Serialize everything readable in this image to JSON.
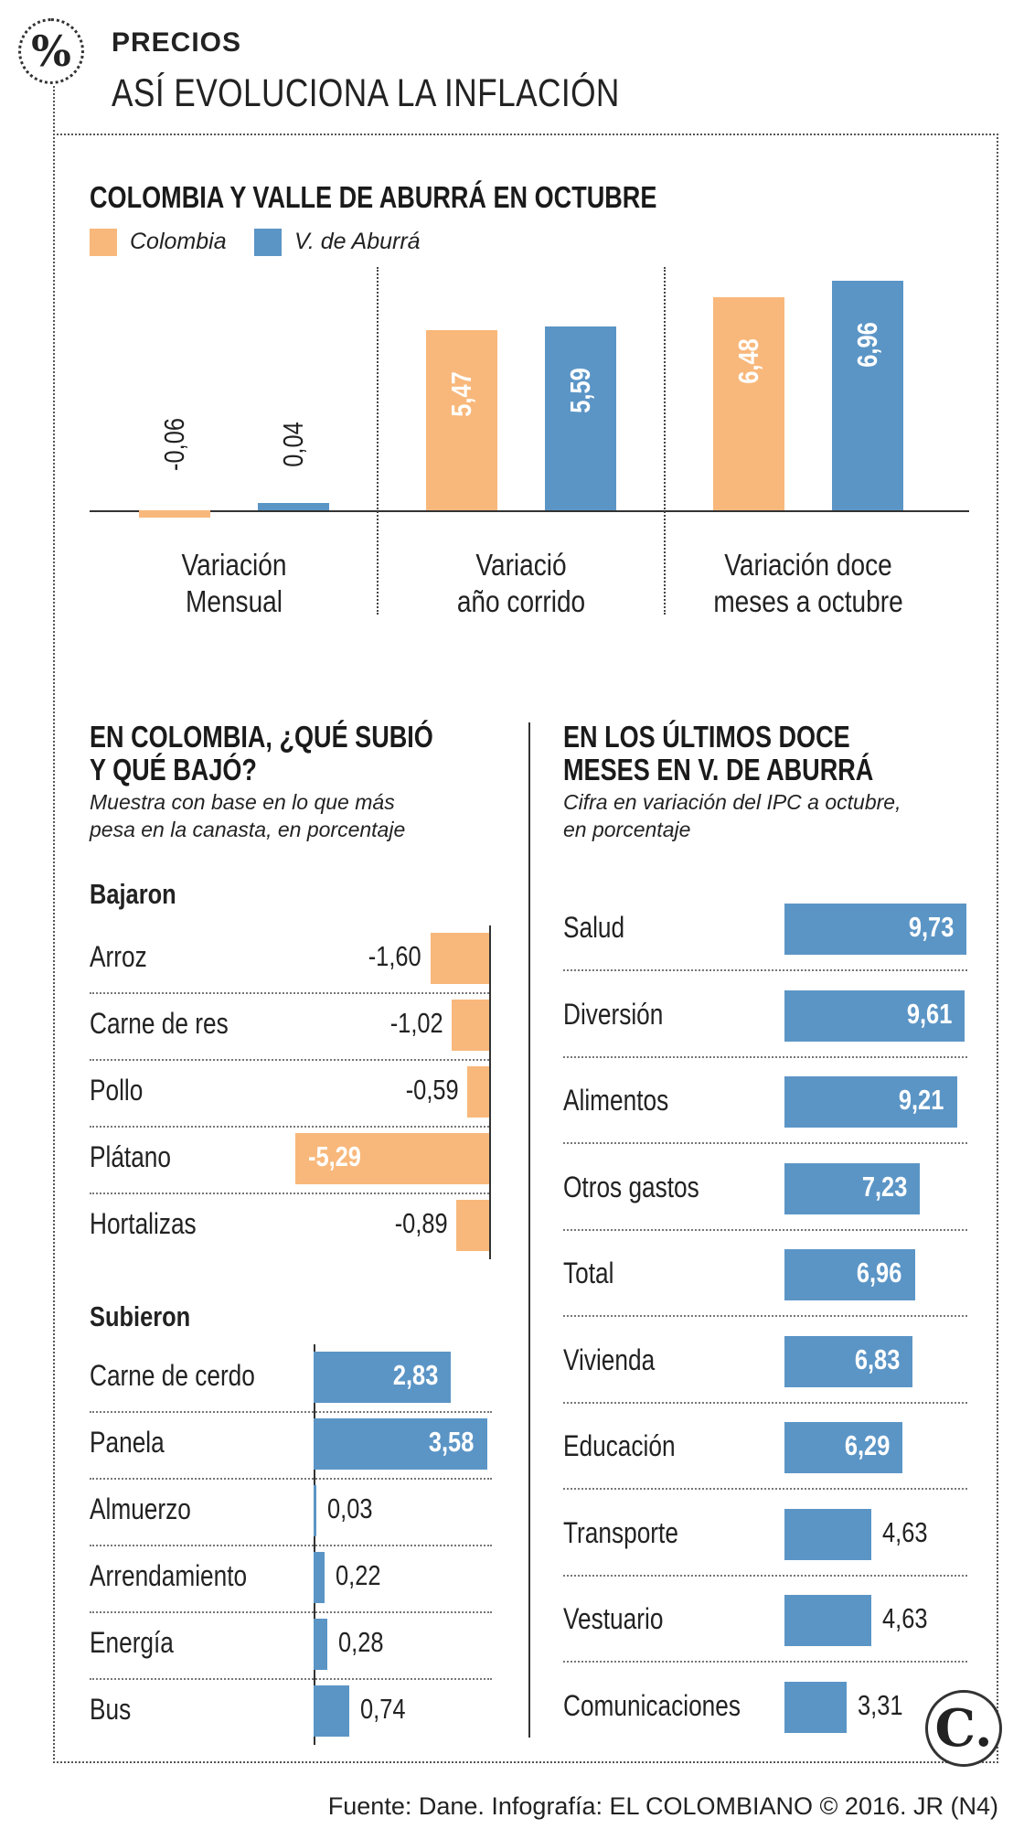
{
  "header": {
    "badge": "%",
    "kicker": "PRECIOS",
    "title": "ASÍ EVOLUCIONA LA INFLACIÓN"
  },
  "colors": {
    "colombia": "#f8b87b",
    "aburra": "#5b95c6"
  },
  "footer": "Fuente: Dane. Infografía: EL COLOMBIANO © 2016. JR (N4)",
  "logo": "C.",
  "chart_data": [
    {
      "type": "bar",
      "title": "COLOMBIA Y VALLE DE ABURRÁ EN OCTUBRE",
      "categories": [
        "Variación Mensual",
        "Variació año corrido",
        "Variación doce meses a octubre"
      ],
      "category_lines": [
        [
          "Variación",
          "Mensual"
        ],
        [
          "Variació",
          "año corrido"
        ],
        [
          "Variación doce",
          "meses a octubre"
        ]
      ],
      "series": [
        {
          "name": "Colombia",
          "values": [
            -0.06,
            5.47,
            6.48
          ],
          "labels": [
            "-0,06",
            "5,47",
            "6,48"
          ]
        },
        {
          "name": "V. de Aburrá",
          "values": [
            0.04,
            5.59,
            6.96
          ],
          "labels": [
            "0,04",
            "5,59",
            "6,96"
          ]
        }
      ],
      "ylim": [
        -0.1,
        7
      ]
    },
    {
      "type": "bar",
      "title": "EN COLOMBIA, ¿QUÉ SUBIÓ Y QUÉ BAJÓ?",
      "title_lines": [
        "EN COLOMBIA, ¿QUÉ SUBIÓ",
        "Y QUÉ BAJÓ?"
      ],
      "subtitle_lines": [
        "Muestra con base en lo que más",
        "pesa en la canasta, en porcentaje"
      ],
      "groups": [
        {
          "name": "Bajaron",
          "items": [
            {
              "label": "Arroz",
              "value": -1.6,
              "text": "-1,60"
            },
            {
              "label": "Carne de res",
              "value": -1.02,
              "text": "-1,02"
            },
            {
              "label": "Pollo",
              "value": -0.59,
              "text": "-0,59"
            },
            {
              "label": "Plátano",
              "value": -5.29,
              "text": "-5,29"
            },
            {
              "label": "Hortalizas",
              "value": -0.89,
              "text": "-0,89"
            }
          ]
        },
        {
          "name": "Subieron",
          "items": [
            {
              "label": "Carne de cerdo",
              "value": 2.83,
              "text": "2,83"
            },
            {
              "label": "Panela",
              "value": 3.58,
              "text": "3,58"
            },
            {
              "label": "Almuerzo",
              "value": 0.03,
              "text": "0,03"
            },
            {
              "label": "Arrendamiento",
              "value": 0.22,
              "text": "0,22"
            },
            {
              "label": "Energía",
              "value": 0.28,
              "text": "0,28"
            },
            {
              "label": "Bus",
              "value": 0.74,
              "text": "0,74"
            }
          ]
        }
      ]
    },
    {
      "type": "bar",
      "title": "EN LOS ÚLTIMOS DOCE MESES EN V. DE ABURRÁ",
      "title_lines": [
        "EN LOS ÚLTIMOS DOCE",
        "MESES EN V. DE ABURRÁ"
      ],
      "subtitle_lines": [
        "Cifra en variación del IPC a octubre,",
        "en porcentaje"
      ],
      "items": [
        {
          "label": "Salud",
          "value": 9.73,
          "text": "9,73"
        },
        {
          "label": "Diversión",
          "value": 9.61,
          "text": "9,61"
        },
        {
          "label": "Alimentos",
          "value": 9.21,
          "text": "9,21"
        },
        {
          "label": "Otros gastos",
          "value": 7.23,
          "text": "7,23"
        },
        {
          "label": "Total",
          "value": 6.96,
          "text": "6,96"
        },
        {
          "label": "Vivienda",
          "value": 6.83,
          "text": "6,83"
        },
        {
          "label": "Educación",
          "value": 6.29,
          "text": "6,29"
        },
        {
          "label": "Transporte",
          "value": 4.63,
          "text": "4,63"
        },
        {
          "label": "Vestuario",
          "value": 4.63,
          "text": "4,63"
        },
        {
          "label": "Comunicaciones",
          "value": 3.31,
          "text": "3,31"
        }
      ]
    }
  ]
}
